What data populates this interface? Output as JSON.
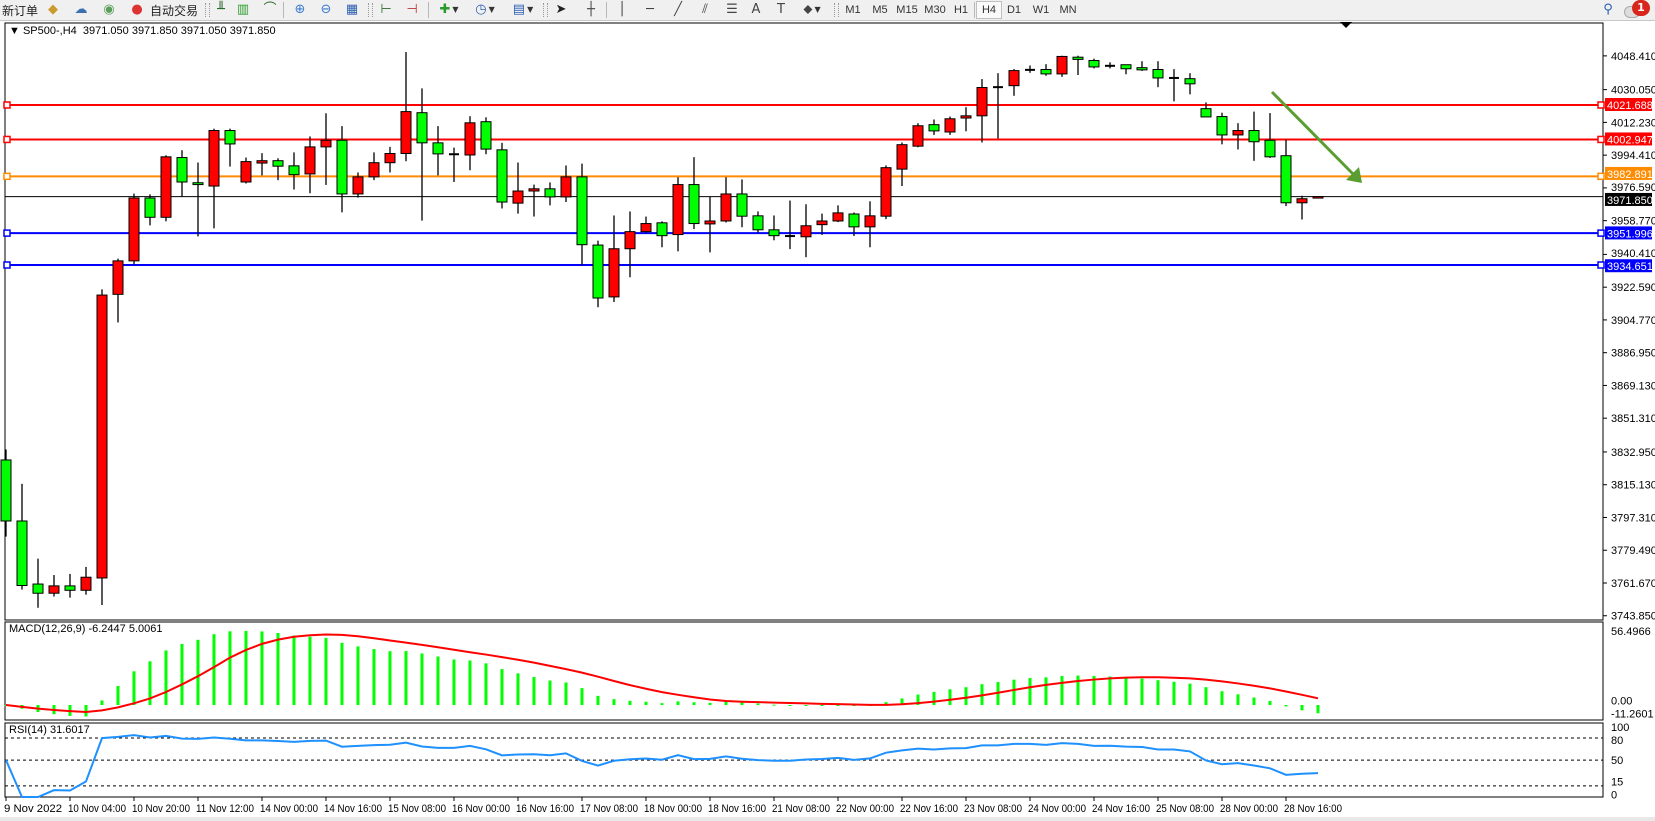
{
  "toolbar": {
    "new_order_label": "新订单",
    "auto_trading_label": "自动交易",
    "periods": [
      "M1",
      "M5",
      "M15",
      "M30",
      "H1",
      "H4",
      "D1",
      "W1",
      "MN"
    ],
    "active_period": "H4",
    "notification_count": "1",
    "icons": [
      "metaeditor-icon",
      "cloud-icon",
      "signal-icon",
      "autotrading-icon",
      "bar-chart-icon",
      "candlestick-icon",
      "line-chart-icon",
      "zoom-in-icon",
      "zoom-out-icon",
      "tile-windows-icon",
      "auto-scroll-icon",
      "chart-shift-icon",
      "indicators-icon",
      "periods-icon",
      "templates-icon",
      "cursor-icon",
      "crosshair-icon",
      "vertical-line-icon",
      "horizontal-line-icon",
      "trendline-icon",
      "equidistant-channel-icon",
      "fibonacci-icon",
      "text-icon",
      "text-label-icon",
      "arrows-icon",
      "search-icon",
      "notification-icon"
    ]
  },
  "chart": {
    "symbol_header": "SP500-,H4",
    "ohlc_header": "3971.050 3971.850 3971.050 3971.850",
    "colors": {
      "bull": "#ff0000",
      "bear": "#00ff00",
      "macd_hist": "#00ff00",
      "signal": "#ff0000",
      "rsi": "#1e90ff",
      "arrow": "#5a9e32"
    }
  },
  "chart_data": {
    "type": "candlestick",
    "price_ticks": [
      "4048.410",
      "4030.050",
      "4012.230",
      "3994.410",
      "3976.590",
      "3958.770",
      "3940.410",
      "3922.590",
      "3904.770",
      "3886.950",
      "3869.130",
      "3851.310",
      "3832.950",
      "3815.130",
      "3797.310",
      "3779.490",
      "3761.670",
      "3743.850"
    ],
    "price_range": [
      3743.85,
      4048.41
    ],
    "time_labels": [
      "9 Nov 2022",
      "10 Nov 04:00",
      "10 Nov 20:00",
      "11 Nov 12:00",
      "14 Nov 00:00",
      "14 Nov 16:00",
      "15 Nov 08:00",
      "16 Nov 00:00",
      "16 Nov 16:00",
      "17 Nov 08:00",
      "18 Nov 00:00",
      "18 Nov 16:00",
      "21 Nov 08:00",
      "22 Nov 00:00",
      "22 Nov 16:00",
      "23 Nov 08:00",
      "24 Nov 00:00",
      "24 Nov 16:00",
      "25 Nov 08:00",
      "28 Nov 00:00",
      "28 Nov 16:00"
    ],
    "horizontal_lines": [
      {
        "price": "4021.688",
        "color": "#ff0000"
      },
      {
        "price": "4002.947",
        "color": "#ff0000"
      },
      {
        "price": "3982.891",
        "color": "#ff8c00"
      },
      {
        "price": "3951.996",
        "color": "#0000ff"
      },
      {
        "price": "3934.651",
        "color": "#0000ff"
      }
    ],
    "current_price": "3971.850",
    "candles_ohlc": [
      [
        3828.6,
        3834.3,
        3786.9,
        3795.4
      ],
      [
        3795.4,
        3815.6,
        3758.1,
        3760.3
      ],
      [
        3761.1,
        3774.9,
        3748.2,
        3756.1
      ],
      [
        3756.1,
        3766.0,
        3754.3,
        3760.1
      ],
      [
        3760.1,
        3766.6,
        3753.7,
        3757.7
      ],
      [
        3757.7,
        3770.4,
        3755.3,
        3764.8
      ],
      [
        3764.4,
        3921.4,
        3749.7,
        3918.3
      ],
      [
        3918.7,
        3938.1,
        3903.4,
        3936.9
      ],
      [
        3936.9,
        3973.5,
        3934.9,
        3971.1
      ],
      [
        3971.1,
        3973.1,
        3956.2,
        3960.6
      ],
      [
        3960.6,
        3994.3,
        3958.4,
        3993.5
      ],
      [
        3993.1,
        3997.1,
        3971.9,
        3979.8
      ],
      [
        3979.4,
        3990.4,
        3950.2,
        3978.4
      ],
      [
        3977.6,
        4008.8,
        3954.6,
        4007.8
      ],
      [
        4007.8,
        4008.8,
        3988.2,
        4000.5
      ],
      [
        3979.8,
        3993.1,
        3979.0,
        3990.9
      ],
      [
        3990.1,
        3995.5,
        3983.4,
        3991.4
      ],
      [
        3991.4,
        3992.7,
        3980.8,
        3988.4
      ],
      [
        3988.6,
        3995.9,
        3975.7,
        3983.8
      ],
      [
        3984.2,
        4004.6,
        3973.7,
        3998.9
      ],
      [
        3998.9,
        4017.2,
        3978.2,
        4002.5
      ],
      [
        4002.5,
        4010.2,
        3963.3,
        3973.3
      ],
      [
        3973.3,
        3985.0,
        3971.3,
        3982.6
      ],
      [
        3982.6,
        3995.9,
        3980.8,
        3990.3
      ],
      [
        3990.3,
        3998.9,
        3985.0,
        3995.3
      ],
      [
        3995.3,
        4050.5,
        3991.1,
        4018.1
      ],
      [
        4017.5,
        4030.7,
        3958.8,
        4001.1
      ],
      [
        4001.1,
        4010.2,
        3983.4,
        3995.1
      ],
      [
        3994.9,
        3998.5,
        3979.8,
        3994.9
      ],
      [
        3994.5,
        4015.6,
        3986.2,
        4012.0
      ],
      [
        4012.6,
        4015.0,
        3994.9,
        3997.7
      ],
      [
        3997.3,
        4001.1,
        3965.4,
        3968.9
      ],
      [
        3968.3,
        3990.4,
        3962.6,
        3974.9
      ],
      [
        3974.9,
        3978.4,
        3961.0,
        3976.1
      ],
      [
        3976.1,
        3979.6,
        3967.1,
        3971.7
      ],
      [
        3971.7,
        3988.8,
        3968.9,
        3982.6
      ],
      [
        3982.6,
        3989.8,
        3934.6,
        3945.7
      ],
      [
        3945.5,
        3947.9,
        3911.7,
        3916.7
      ],
      [
        3917.3,
        3961.6,
        3914.5,
        3943.5
      ],
      [
        3943.5,
        3963.8,
        3928.0,
        3952.8
      ],
      [
        3952.8,
        3961.0,
        3952.2,
        3957.2
      ],
      [
        3957.6,
        3958.4,
        3944.3,
        3950.6
      ],
      [
        3951.2,
        3982.4,
        3942.1,
        3978.4
      ],
      [
        3978.4,
        3993.3,
        3954.2,
        3957.2
      ],
      [
        3957.0,
        3971.9,
        3941.5,
        3958.6
      ],
      [
        3958.6,
        3982.4,
        3957.8,
        3973.3
      ],
      [
        3973.3,
        3981.2,
        3955.2,
        3961.2
      ],
      [
        3961.4,
        3963.8,
        3952.2,
        3953.8
      ],
      [
        3953.8,
        3961.6,
        3948.1,
        3950.6
      ],
      [
        3950.4,
        3969.7,
        3943.3,
        3950.4
      ],
      [
        3950.0,
        3967.7,
        3938.9,
        3956.0
      ],
      [
        3956.6,
        3962.6,
        3951.0,
        3958.6
      ],
      [
        3958.6,
        3967.1,
        3958.0,
        3963.0
      ],
      [
        3962.4,
        3963.2,
        3950.4,
        3955.4
      ],
      [
        3955.4,
        3969.3,
        3944.3,
        3961.4
      ],
      [
        3961.2,
        3988.8,
        3959.6,
        3987.6
      ],
      [
        3986.8,
        4001.3,
        3977.6,
        4000.1
      ],
      [
        3999.3,
        4011.8,
        3998.7,
        4010.4
      ],
      [
        4011.0,
        4013.8,
        4005.4,
        4007.6
      ],
      [
        4007.0,
        4015.4,
        4005.4,
        4014.2
      ],
      [
        4014.6,
        4020.5,
        4007.4,
        4015.8
      ],
      [
        4015.8,
        4035.8,
        4001.3,
        4031.2
      ],
      [
        4031.4,
        4039.0,
        4003.5,
        4031.4
      ],
      [
        4032.2,
        4041.2,
        4026.7,
        4040.4
      ],
      [
        4040.8,
        4043.2,
        4039.2,
        4040.8
      ],
      [
        4041.0,
        4043.9,
        4037.6,
        4038.6
      ],
      [
        4038.6,
        4048.5,
        4037.0,
        4048.1
      ],
      [
        4047.7,
        4048.5,
        4038.0,
        4046.5
      ],
      [
        4045.9,
        4046.9,
        4041.6,
        4042.4
      ],
      [
        4043.0,
        4044.9,
        4041.6,
        4043.0
      ],
      [
        4043.6,
        4043.6,
        4038.4,
        4041.4
      ],
      [
        4042.0,
        4045.5,
        4040.2,
        4040.8
      ],
      [
        4041.0,
        4045.5,
        4031.4,
        4036.4
      ],
      [
        4036.4,
        4041.2,
        4023.7,
        4036.4
      ],
      [
        4036.0,
        4039.0,
        4027.5,
        4033.2
      ],
      [
        4019.7,
        4023.1,
        4015.2,
        4015.2
      ],
      [
        4015.4,
        4017.5,
        4000.3,
        4005.4
      ],
      [
        4005.4,
        4011.8,
        3997.5,
        4007.8
      ],
      [
        4007.8,
        4018.1,
        3991.3,
        4001.7
      ],
      [
        4002.5,
        4017.3,
        3992.9,
        3993.5
      ],
      [
        3994.1,
        4002.9,
        3966.7,
        3968.5
      ],
      [
        3968.5,
        3972.3,
        3959.4,
        3970.7
      ],
      [
        3971.05,
        3971.85,
        3971.05,
        3971.85
      ]
    ],
    "macd": {
      "label": "MACD(12,26,9) -6.2447 5.0061",
      "params": [
        12,
        26,
        9
      ],
      "axis_top": "56.4966",
      "axis_zero": "0.00",
      "axis_bottom": "-11.2601",
      "range": [
        -11.2601,
        56.4966
      ]
    },
    "rsi": {
      "label": "RSI(14) 31.6017",
      "period": 14,
      "axis_labels": [
        "100",
        "80",
        "50",
        "15",
        "0"
      ],
      "levels": [
        80,
        50,
        15
      ]
    }
  }
}
